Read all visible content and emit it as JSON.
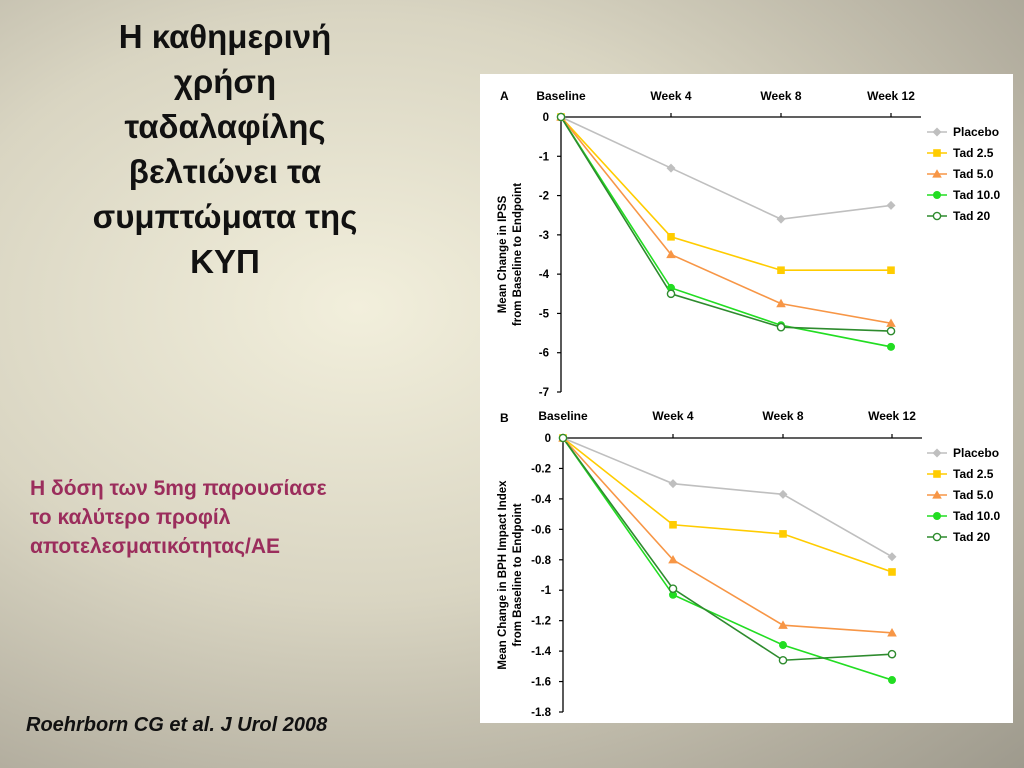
{
  "title_lines": [
    "Η καθημερινή",
    "χρήση",
    "ταδαλαφίλης",
    "βελτιώνει τα",
    "συμπτώματα της",
    "ΚΥΠ"
  ],
  "note_lines": [
    "Η δόση των 5mg παρουσίασε",
    "το καλύτερο προφίλ",
    "αποτελεσματικότητας/ΑΕ"
  ],
  "citation": "Roehrborn CG et al. J Urol 2008",
  "colors": {
    "note": "#9b2d5c",
    "Placebo": "#bfbfbf",
    "Tad 2.5": "#ffcc00",
    "Tad 5.0": "#f79646",
    "Tad 10.0": "#22dd22",
    "Tad 20": "#2e8b2e"
  },
  "chart_data": [
    {
      "panel": "A",
      "type": "line",
      "categories": [
        "Baseline",
        "Week 4",
        "Week 8",
        "Week 12"
      ],
      "ylabel_lines": [
        "Mean Change in IPSS",
        "from Baseline to Endpoint"
      ],
      "ylim": [
        -7,
        0
      ],
      "yticks": [
        0,
        -1,
        -2,
        -3,
        -4,
        -5,
        -6,
        -7
      ],
      "ytick_labels": [
        "0",
        "-1",
        "-2",
        "-3",
        "-4",
        "-5",
        "-6",
        "-7"
      ],
      "legend_position": "top-right",
      "series": [
        {
          "name": "Placebo",
          "marker": "diamond",
          "values": [
            0,
            -1.3,
            -2.6,
            -2.25
          ]
        },
        {
          "name": "Tad 2.5",
          "marker": "square",
          "values": [
            0,
            -3.05,
            -3.9,
            -3.9
          ]
        },
        {
          "name": "Tad 5.0",
          "marker": "triangle",
          "values": [
            0,
            -3.5,
            -4.75,
            -5.25
          ]
        },
        {
          "name": "Tad 10.0",
          "marker": "circle",
          "values": [
            0,
            -4.35,
            -5.3,
            -5.85
          ]
        },
        {
          "name": "Tad 20",
          "marker": "open-circle",
          "values": [
            0,
            -4.5,
            -5.35,
            -5.45
          ]
        }
      ]
    },
    {
      "panel": "B",
      "type": "line",
      "categories": [
        "Baseline",
        "Week 4",
        "Week 8",
        "Week 12"
      ],
      "ylabel_lines": [
        "Mean Change in BPH Impact Index",
        "from Baseline to Endpoint"
      ],
      "ylim": [
        -1.8,
        0
      ],
      "yticks": [
        0,
        -0.2,
        -0.4,
        -0.6,
        -0.8,
        -1,
        -1.2,
        -1.4,
        -1.6,
        -1.8
      ],
      "ytick_labels": [
        "0",
        "-0.2",
        "-0.4",
        "-0.6",
        "-0.8",
        "-1",
        "-1.2",
        "-1.4",
        "-1.6",
        "-1.8"
      ],
      "legend_position": "top-right",
      "series": [
        {
          "name": "Placebo",
          "marker": "diamond",
          "values": [
            0,
            -0.3,
            -0.37,
            -0.78
          ]
        },
        {
          "name": "Tad 2.5",
          "marker": "square",
          "values": [
            0,
            -0.57,
            -0.63,
            -0.88
          ]
        },
        {
          "name": "Tad 5.0",
          "marker": "triangle",
          "values": [
            0,
            -0.8,
            -1.23,
            -1.28
          ]
        },
        {
          "name": "Tad 10.0",
          "marker": "circle",
          "values": [
            0,
            -1.03,
            -1.36,
            -1.59
          ]
        },
        {
          "name": "Tad 20",
          "marker": "open-circle",
          "values": [
            0,
            -0.99,
            -1.46,
            -1.42
          ]
        }
      ]
    }
  ]
}
